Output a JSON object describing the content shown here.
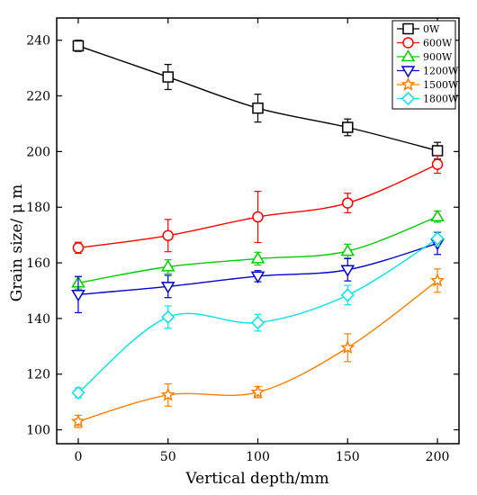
{
  "chart_data": {
    "type": "line",
    "xlabel": "Vertical depth/mm",
    "ylabel": "Grain size/ μ m",
    "xlim": [
      -12,
      212
    ],
    "ylim": [
      95,
      248
    ],
    "x": [
      0,
      50,
      100,
      150,
      200
    ],
    "xticks": [
      0,
      50,
      100,
      150,
      200
    ],
    "yticks": [
      100,
      120,
      140,
      160,
      180,
      200,
      220,
      240
    ],
    "legend_position": "top-right",
    "series": [
      {
        "name": "0W",
        "marker": "square",
        "color": "#000000",
        "values": [
          238.0,
          226.8,
          215.6,
          208.7,
          200.3
        ],
        "errors": [
          2.0,
          4.5,
          5.0,
          3.0,
          3.0
        ]
      },
      {
        "name": "600W",
        "marker": "circle",
        "color": "#ff0000",
        "values": [
          165.4,
          169.8,
          176.5,
          181.5,
          195.4
        ],
        "errors": [
          2.0,
          5.8,
          9.2,
          3.5,
          3.2
        ]
      },
      {
        "name": "900W",
        "marker": "triangle-up",
        "color": "#00cc00",
        "values": [
          152.8,
          158.6,
          161.5,
          164.2,
          176.6
        ],
        "errors": [
          2.2,
          2.5,
          2.3,
          2.5,
          2.0
        ]
      },
      {
        "name": "1200W",
        "marker": "triangle-down",
        "color": "#0000cc",
        "values": [
          148.6,
          151.5,
          155.2,
          157.5,
          167.0
        ],
        "errors": [
          6.5,
          4.0,
          2.0,
          4.0,
          4.0
        ]
      },
      {
        "name": "1500W",
        "marker": "star",
        "color": "#ff8000",
        "values": [
          103.0,
          112.5,
          113.5,
          129.5,
          153.6
        ],
        "errors": [
          2.2,
          4.0,
          2.0,
          5.0,
          4.2
        ]
      },
      {
        "name": "1800W",
        "marker": "diamond",
        "color": "#00e5e5",
        "values": [
          113.3,
          140.5,
          138.5,
          148.4,
          168.7
        ],
        "errors": [
          1.8,
          4.0,
          3.0,
          3.5,
          2.5
        ]
      }
    ]
  }
}
